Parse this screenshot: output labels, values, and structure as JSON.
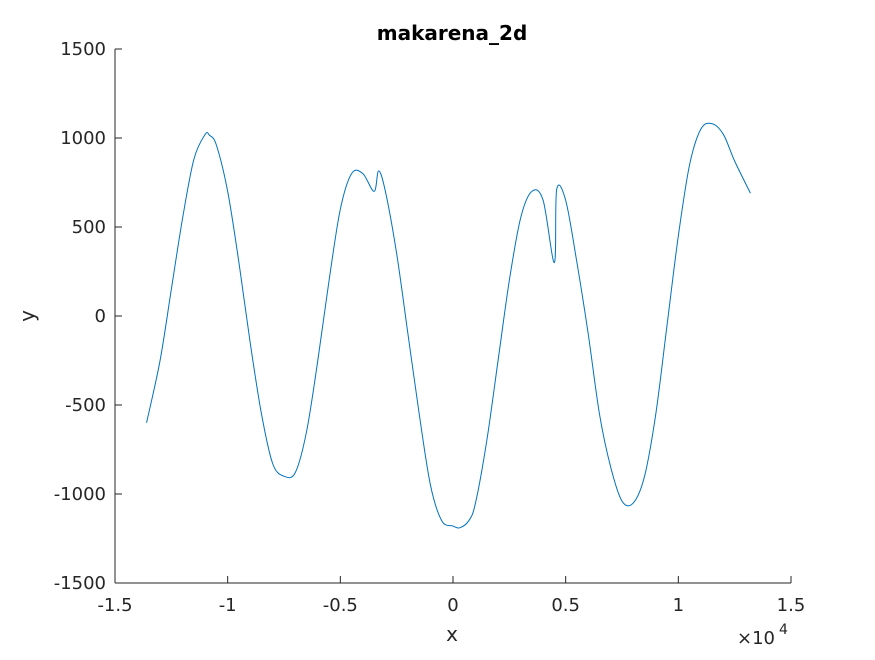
{
  "chart_data": {
    "type": "line",
    "title": "makarena_2d",
    "xlabel": "x",
    "ylabel": "y",
    "xlim": [
      -1.5,
      1.5
    ],
    "ylim": [
      -1500,
      1500
    ],
    "x_multiplier": "×10",
    "x_multiplier_exponent": "4",
    "xticks": [
      -1.5,
      -1,
      -0.5,
      0,
      0.5,
      1,
      1.5
    ],
    "xtick_labels": [
      "-1.5",
      "-1",
      "-0.5",
      "0",
      "0.5",
      "1",
      "1.5"
    ],
    "yticks": [
      -1500,
      -1000,
      -500,
      0,
      500,
      1000,
      1500
    ],
    "ytick_labels": [
      "-1500",
      "-1000",
      "-500",
      "0",
      "500",
      "1000",
      "1500"
    ],
    "grid": false,
    "legend": "none",
    "line_color": "#0072BD",
    "series": [
      {
        "x": [
          -1.36,
          -1.3,
          -1.25,
          -1.2,
          -1.15,
          -1.1,
          -1.08,
          -1.05,
          -1.0,
          -0.95,
          -0.9,
          -0.85,
          -0.8,
          -0.75,
          -0.7,
          -0.65,
          -0.6,
          -0.55,
          -0.5,
          -0.45,
          -0.4,
          -0.35,
          -0.33,
          -0.3,
          -0.25,
          -0.2,
          -0.15,
          -0.1,
          -0.05,
          0.0,
          0.03,
          0.07,
          0.1,
          0.15,
          0.2,
          0.25,
          0.3,
          0.35,
          0.4,
          0.45,
          0.46,
          0.5,
          0.55,
          0.6,
          0.65,
          0.7,
          0.75,
          0.8,
          0.85,
          0.9,
          0.95,
          1.0,
          1.05,
          1.1,
          1.15,
          1.2,
          1.25,
          1.32
        ],
        "y": [
          -600,
          -250,
          150,
          550,
          880,
          1020,
          1015,
          960,
          700,
          300,
          -150,
          -550,
          -830,
          -900,
          -880,
          -650,
          -250,
          200,
          600,
          800,
          800,
          700,
          815,
          700,
          350,
          -100,
          -550,
          -950,
          -1150,
          -1180,
          -1190,
          -1150,
          -1050,
          -700,
          -250,
          200,
          550,
          700,
          650,
          300,
          710,
          650,
          300,
          -100,
          -550,
          -850,
          -1040,
          -1050,
          -900,
          -550,
          -50,
          450,
          850,
          1050,
          1080,
          1020,
          870,
          690
        ]
      }
    ]
  }
}
